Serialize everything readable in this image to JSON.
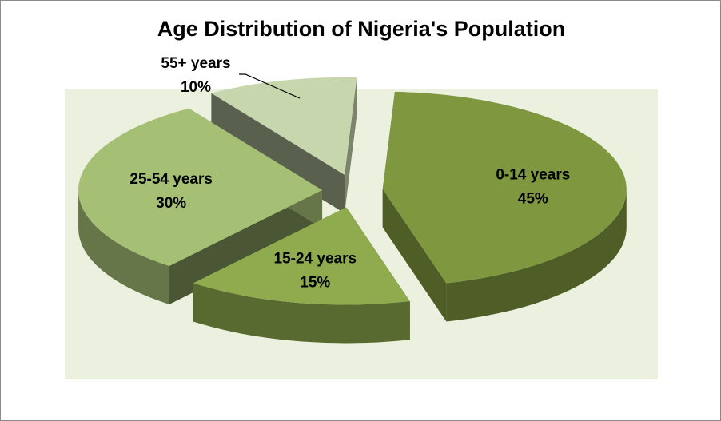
{
  "chart_data": {
    "type": "pie",
    "title": "Age Distribution of Nigeria's Population",
    "slices": [
      {
        "label": "0-14 years",
        "value": 45,
        "value_label": "45%",
        "color": "#7f983f"
      },
      {
        "label": "15-24 years",
        "value": 15,
        "value_label": "15%",
        "color": "#8fab4d"
      },
      {
        "label": "25-54 years",
        "value": 30,
        "value_label": "30%",
        "color": "#a5bf74"
      },
      {
        "label": "55+ years",
        "value": 10,
        "value_label": "10%",
        "color": "#c8d6ae"
      }
    ],
    "style": "3d-exploded",
    "plot_background": "#ebf0df",
    "legend": "none"
  }
}
